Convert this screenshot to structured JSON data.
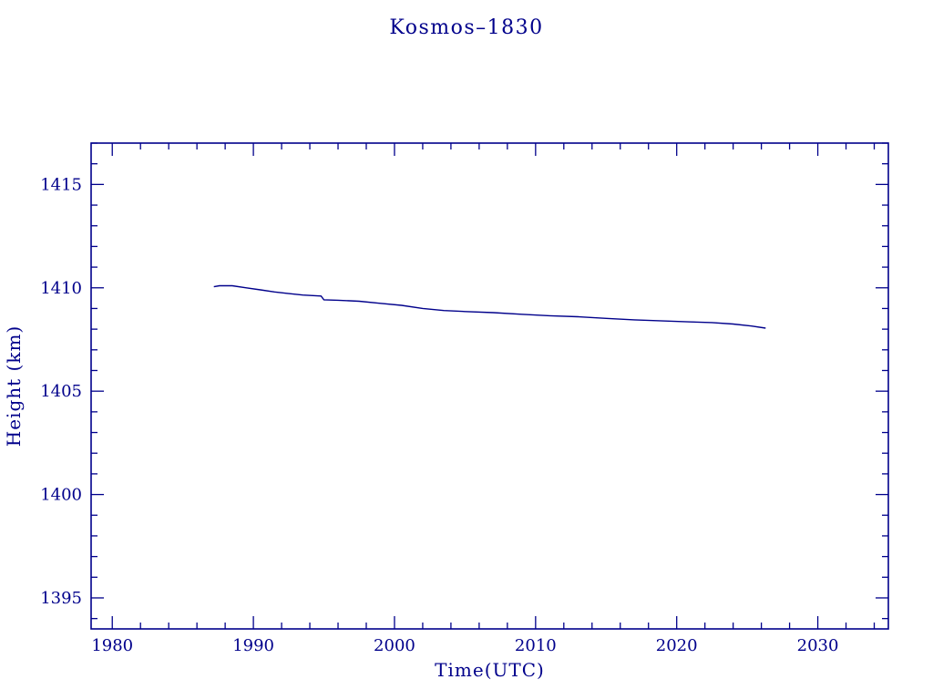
{
  "page": {
    "background": "#ffffff"
  },
  "chart_data": {
    "type": "line",
    "title": "Kosmos–1830",
    "xlabel": "Time(UTC)",
    "ylabel": "Height (km)",
    "xlim": [
      1978.5,
      2035
    ],
    "ylim": [
      1393.5,
      1417
    ],
    "x_major_ticks": [
      1980,
      1990,
      2000,
      2010,
      2020,
      2030
    ],
    "x_minor_step": 2,
    "y_major_ticks": [
      1395,
      1400,
      1405,
      1410,
      1415
    ],
    "y_minor_step": 1,
    "grid": false,
    "legend_position": "none",
    "ink_color": "#00008b",
    "line_color": "#00008b",
    "series": [
      {
        "name": "orbital-height",
        "points": [
          [
            1987.2,
            1410.05
          ],
          [
            1987.6,
            1410.1
          ],
          [
            1988.5,
            1410.1
          ],
          [
            1989.5,
            1410.0
          ],
          [
            1990.5,
            1409.9
          ],
          [
            1991.5,
            1409.8
          ],
          [
            1992.5,
            1409.72
          ],
          [
            1993.5,
            1409.65
          ],
          [
            1994.8,
            1409.6
          ],
          [
            1995.0,
            1409.42
          ],
          [
            1996.0,
            1409.4
          ],
          [
            1997.5,
            1409.35
          ],
          [
            1999.0,
            1409.25
          ],
          [
            2000.5,
            1409.15
          ],
          [
            2002.0,
            1409.0
          ],
          [
            2003.5,
            1408.9
          ],
          [
            2005.0,
            1408.85
          ],
          [
            2007.0,
            1408.8
          ],
          [
            2009.0,
            1408.72
          ],
          [
            2011.0,
            1408.65
          ],
          [
            2013.0,
            1408.6
          ],
          [
            2015.0,
            1408.52
          ],
          [
            2017.0,
            1408.45
          ],
          [
            2019.0,
            1408.4
          ],
          [
            2021.0,
            1408.35
          ],
          [
            2022.5,
            1408.32
          ],
          [
            2024.0,
            1408.25
          ],
          [
            2025.3,
            1408.15
          ],
          [
            2026.3,
            1408.05
          ]
        ]
      }
    ]
  }
}
